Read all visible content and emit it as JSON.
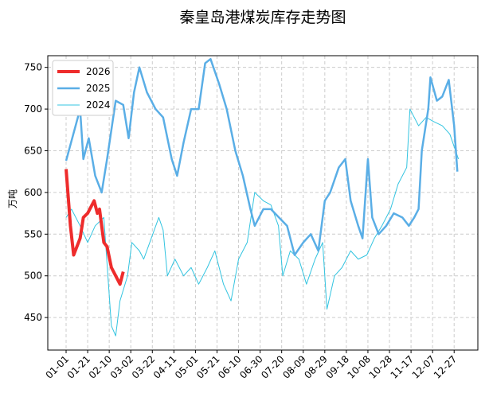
{
  "chart_data": {
    "type": "line",
    "title": "秦皇岛港煤炭库存走势图",
    "y_label": "万吨",
    "xlim": [
      -17,
      382
    ],
    "ylim": [
      411,
      764
    ],
    "xticks": [
      {
        "value": 0,
        "label": "01-01"
      },
      {
        "value": 20,
        "label": "01-21"
      },
      {
        "value": 40,
        "label": "02-10"
      },
      {
        "value": 60,
        "label": "03-02"
      },
      {
        "value": 80,
        "label": "03-22"
      },
      {
        "value": 100,
        "label": "04-11"
      },
      {
        "value": 120,
        "label": "05-01"
      },
      {
        "value": 140,
        "label": "05-21"
      },
      {
        "value": 160,
        "label": "06-10"
      },
      {
        "value": 180,
        "label": "06-30"
      },
      {
        "value": 200,
        "label": "07-20"
      },
      {
        "value": 220,
        "label": "08-09"
      },
      {
        "value": 240,
        "label": "08-29"
      },
      {
        "value": 260,
        "label": "09-18"
      },
      {
        "value": 280,
        "label": "10-08"
      },
      {
        "value": 300,
        "label": "10-28"
      },
      {
        "value": 320,
        "label": "11-17"
      },
      {
        "value": 340,
        "label": "12-07"
      },
      {
        "value": 360,
        "label": "12-27"
      }
    ],
    "yticks": [
      450,
      500,
      550,
      600,
      650,
      700,
      750
    ],
    "grid": true,
    "legend": "upper left",
    "series": [
      {
        "name": "2026",
        "color": "#ee2c2c",
        "width": 4,
        "x": [
          0,
          4,
          7,
          10,
          13,
          16,
          20,
          26,
          29,
          31,
          35,
          38,
          42,
          46,
          50,
          53
        ],
        "values": [
          628,
          560,
          525,
          535,
          545,
          570,
          575,
          590,
          575,
          580,
          540,
          535,
          510,
          500,
          490,
          505
        ]
      },
      {
        "name": "2025",
        "color": "#5aaee6",
        "width": 2.5,
        "x": [
          0,
          13,
          16,
          21,
          27,
          33,
          38,
          46,
          53,
          58,
          63,
          68,
          75,
          83,
          90,
          98,
          103,
          109,
          116,
          123,
          129,
          134,
          142,
          149,
          157,
          164,
          171,
          175,
          183,
          190,
          205,
          212,
          220,
          227,
          234,
          240,
          245,
          253,
          259,
          264,
          271,
          275,
          280,
          284,
          290,
          297,
          304,
          312,
          318,
          323,
          327,
          330,
          336,
          338,
          344,
          349,
          355,
          360,
          363
        ],
        "values": [
          638,
          700,
          640,
          665,
          620,
          600,
          640,
          710,
          705,
          665,
          720,
          750,
          720,
          700,
          690,
          640,
          620,
          660,
          700,
          700,
          755,
          760,
          730,
          700,
          650,
          620,
          580,
          560,
          580,
          580,
          560,
          525,
          540,
          550,
          530,
          590,
          600,
          630,
          640,
          590,
          560,
          545,
          640,
          570,
          550,
          560,
          575,
          570,
          560,
          570,
          580,
          650,
          700,
          738,
          710,
          715,
          735,
          680,
          625
        ]
      },
      {
        "name": "2024",
        "color": "#33c4e0",
        "width": 1,
        "x": [
          0,
          5,
          13,
          20,
          27,
          35,
          42,
          46,
          50,
          57,
          61,
          68,
          72,
          79,
          86,
          90,
          94,
          101,
          109,
          116,
          123,
          131,
          138,
          146,
          153,
          160,
          168,
          175,
          183,
          190,
          197,
          201,
          208,
          216,
          223,
          231,
          238,
          242,
          249,
          256,
          264,
          271,
          279,
          286,
          293,
          301,
          308,
          316,
          319,
          323,
          327,
          334,
          341,
          349,
          356,
          364
        ],
        "values": [
          570,
          580,
          560,
          540,
          560,
          570,
          440,
          428,
          470,
          500,
          540,
          530,
          520,
          545,
          570,
          555,
          500,
          520,
          500,
          510,
          490,
          510,
          530,
          490,
          470,
          520,
          540,
          600,
          590,
          585,
          560,
          500,
          530,
          520,
          490,
          520,
          540,
          460,
          500,
          510,
          530,
          520,
          525,
          545,
          560,
          580,
          610,
          630,
          700,
          690,
          680,
          690,
          685,
          680,
          670,
          640
        ]
      }
    ]
  }
}
